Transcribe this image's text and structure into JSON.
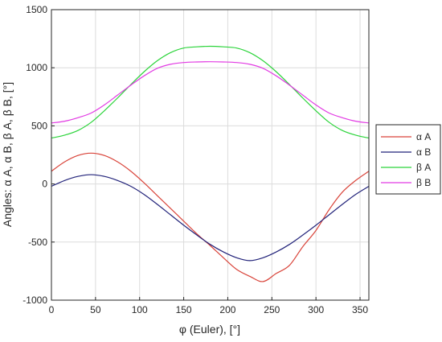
{
  "chart_data": {
    "type": "line",
    "title": "",
    "xlabel": "φ (Euler), [°]",
    "ylabel": "Angles: α A, α B, β A, β B, [°]",
    "xlim": [
      0,
      360
    ],
    "ylim": [
      -1000,
      1500
    ],
    "xticks": [
      0,
      50,
      100,
      150,
      200,
      250,
      300,
      350
    ],
    "yticks": [
      -1000,
      -500,
      0,
      500,
      1000,
      1500
    ],
    "xtick_labels": [
      "0",
      "50",
      "100",
      "150",
      "200",
      "250",
      "300",
      "350"
    ],
    "ytick_labels": [
      "-1000",
      "-500",
      "0",
      "500",
      "1000",
      "1500"
    ],
    "grid": true,
    "legend_position": "right",
    "x": [
      0,
      15,
      30,
      45,
      60,
      75,
      90,
      105,
      120,
      135,
      150,
      165,
      180,
      195,
      210,
      225,
      240,
      255,
      270,
      285,
      300,
      315,
      330,
      345,
      360
    ],
    "series": [
      {
        "name": "α A",
        "color": "#d9443a",
        "values": [
          110,
          190,
          245,
          265,
          245,
          190,
          110,
          10,
          -100,
          -210,
          -320,
          -430,
          -530,
          -635,
          -735,
          -795,
          -840,
          -770,
          -700,
          -540,
          -400,
          -220,
          -70,
          30,
          110
        ]
      },
      {
        "name": "α B",
        "color": "#22237a",
        "values": [
          -20,
          30,
          65,
          80,
          65,
          30,
          -20,
          -90,
          -175,
          -265,
          -355,
          -440,
          -520,
          -585,
          -635,
          -660,
          -635,
          -585,
          -520,
          -440,
          -355,
          -265,
          -175,
          -90,
          -20
        ]
      },
      {
        "name": "β A",
        "color": "#2bd43a",
        "values": [
          395,
          420,
          460,
          530,
          630,
          740,
          855,
          965,
          1060,
          1130,
          1170,
          1180,
          1185,
          1180,
          1170,
          1130,
          1060,
          965,
          855,
          740,
          630,
          530,
          460,
          420,
          395
        ]
      },
      {
        "name": "β B",
        "color": "#e23be3",
        "values": [
          525,
          540,
          570,
          610,
          680,
          765,
          850,
          930,
          995,
          1030,
          1045,
          1050,
          1052,
          1050,
          1045,
          1030,
          995,
          930,
          850,
          765,
          680,
          610,
          570,
          540,
          525
        ]
      }
    ]
  }
}
